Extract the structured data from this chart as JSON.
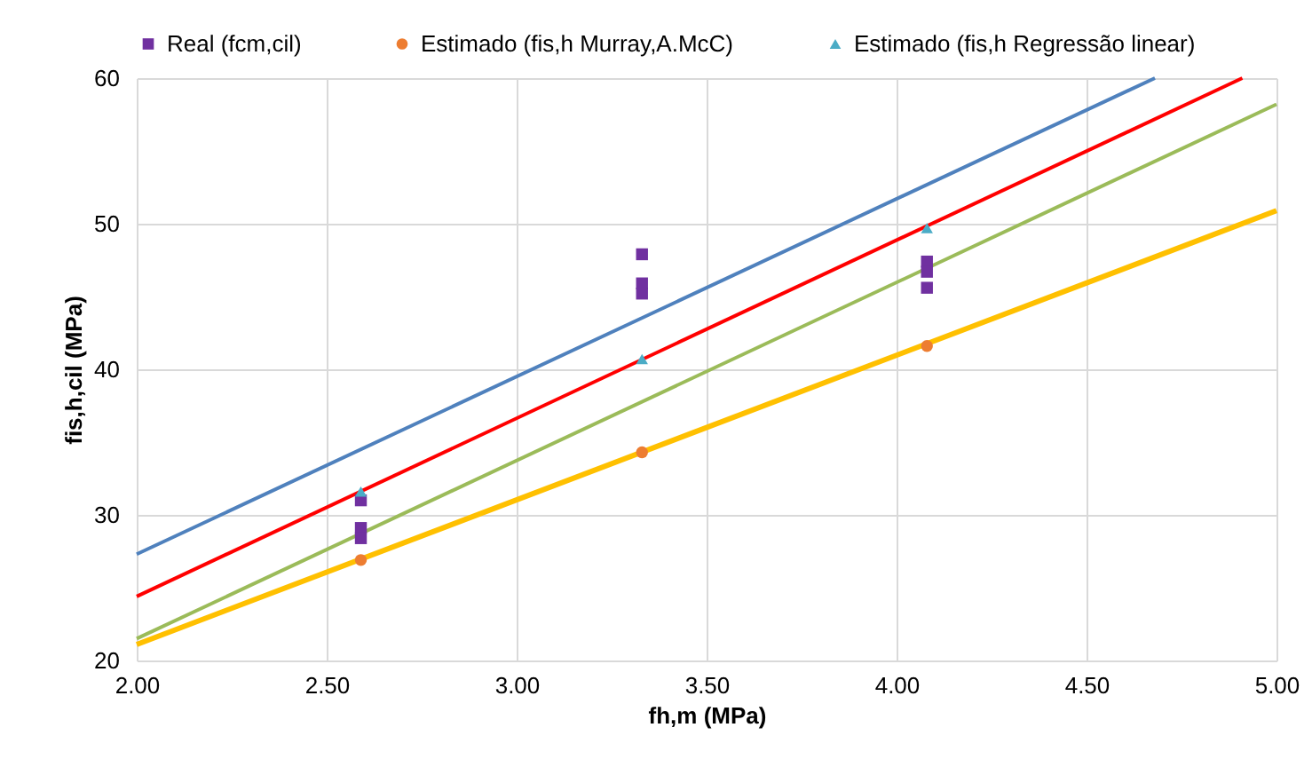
{
  "chart_data": {
    "type": "scatter",
    "xlabel": "fh,m (MPa)",
    "ylabel": "fis,h,cil (MPa)",
    "xlim": [
      2,
      5
    ],
    "xticks": [
      {
        "value": 2,
        "label": "2.00"
      },
      {
        "value": 2.5,
        "label": "2.50"
      },
      {
        "value": 3,
        "label": "3.00"
      },
      {
        "value": 3.5,
        "label": "3.50"
      },
      {
        "value": 4,
        "label": "4.00"
      },
      {
        "value": 4.5,
        "label": "4.50"
      },
      {
        "value": 5,
        "label": "5.00"
      }
    ],
    "ylim": [
      20,
      60
    ],
    "yticks": [
      20,
      30,
      40,
      50,
      60
    ],
    "grid": true,
    "legend": "top",
    "series": [
      {
        "type": "line",
        "color": "#4f81bd",
        "marker": "none",
        "x": [
          2,
          4.68
        ],
        "values": [
          27.3,
          60
        ]
      },
      {
        "type": "line",
        "color": "#ff0000",
        "marker": "none",
        "x": [
          2,
          4.91
        ],
        "values": [
          24.4,
          60
        ]
      },
      {
        "type": "line",
        "color": "#9bbb59",
        "marker": "none",
        "x": [
          2,
          5
        ],
        "values": [
          21.5,
          58.2
        ]
      },
      {
        "type": "line",
        "color": "#ffc000",
        "marker": "none",
        "x": [
          2,
          5
        ],
        "values": [
          21.1,
          50.9
        ]
      },
      {
        "name": "Real (fcm,cil)",
        "color": "#7030a0",
        "marker": "square",
        "x": [
          2.59,
          2.59,
          2.59,
          3.33,
          3.33,
          3.33,
          4.08,
          4.08,
          4.08
        ],
        "values": [
          31.0,
          29.1,
          28.4,
          47.9,
          45.9,
          45.2,
          47.4,
          46.7,
          45.6
        ]
      },
      {
        "name": "Estimado (fis,h Murray,A.McC)",
        "color": "#ed7d31",
        "marker": "circle",
        "x": [
          2.59,
          3.33,
          4.08
        ],
        "values": [
          26.9,
          34.3,
          41.6
        ]
      },
      {
        "name": "Estimado (fis,h Regressão linear)",
        "color": "#4bacc6",
        "marker": "triangle",
        "x": [
          2.59,
          3.33,
          4.08
        ],
        "values": [
          31.6,
          40.7,
          49.7
        ]
      }
    ]
  }
}
